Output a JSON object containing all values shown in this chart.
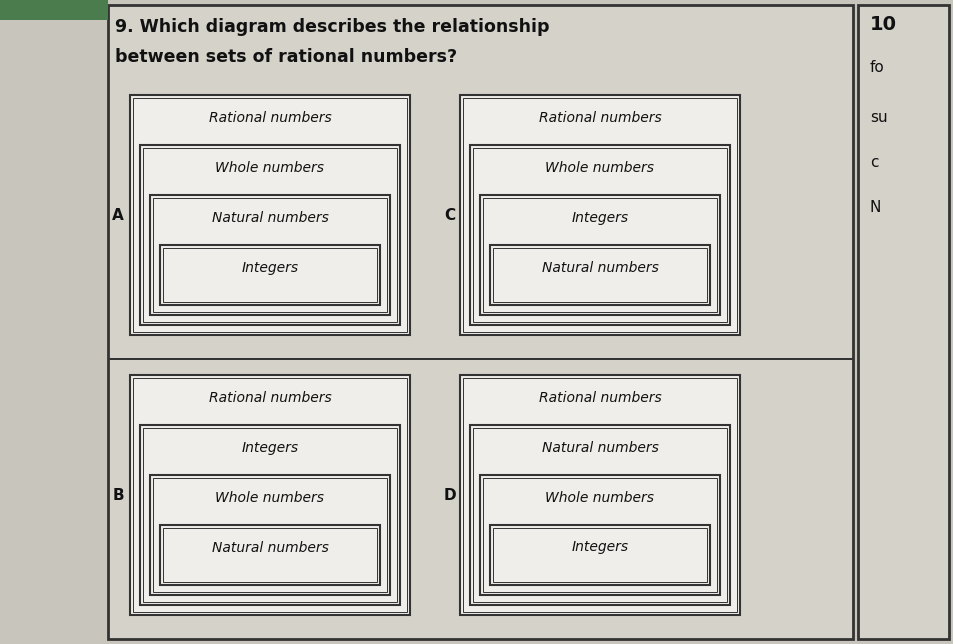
{
  "title_line1": "9. Which diagram describes the relationship",
  "title_line2": "between sets of rational numbers?",
  "bg_color": "#d8d5cc",
  "box_facecolor": "#f0eeea",
  "border_color": "#333333",
  "diagrams": [
    {
      "id": "A",
      "labels": [
        "Rational numbers",
        "Whole numbers",
        "Natural numbers",
        "Integers"
      ]
    },
    {
      "id": "C",
      "labels": [
        "Rational numbers",
        "Whole numbers",
        "Integers",
        "Natural numbers"
      ]
    },
    {
      "id": "B",
      "labels": [
        "Rational numbers",
        "Integers",
        "Whole numbers",
        "Natural numbers"
      ]
    },
    {
      "id": "D",
      "labels": [
        "Rational numbers",
        "Natural numbers",
        "Whole numbers",
        "Integers"
      ]
    }
  ],
  "right_col_texts": [
    "10",
    "fo",
    "su",
    "c",
    "N"
  ],
  "title_fontsize": 12.5,
  "label_fontsize": 10,
  "option_fontsize": 11
}
